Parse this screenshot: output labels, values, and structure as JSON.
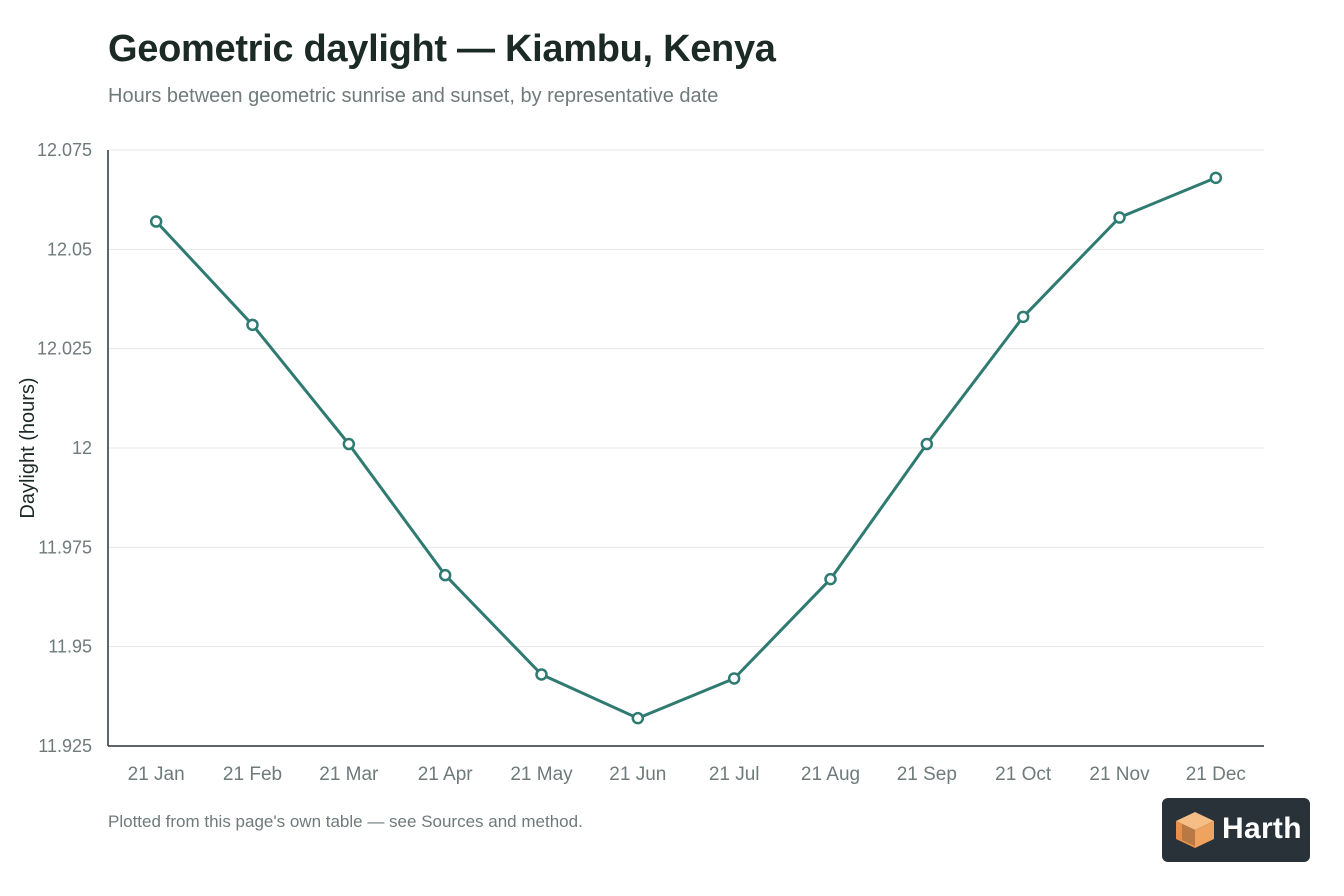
{
  "header": {
    "title": "Geometric daylight — Kiambu, Kenya",
    "subtitle": "Hours between geometric sunrise and sunset, by representative date"
  },
  "footer": {
    "note": "Plotted from this page's own table — see Sources and method."
  },
  "brand": {
    "name": "Harth",
    "logo_icon": "orange-box-logo-icon",
    "logo_color": "#f0a35e",
    "background": "#283238"
  },
  "chart_data": {
    "type": "line",
    "title": "Geometric daylight — Kiambu, Kenya",
    "subtitle": "Hours between geometric sunrise and sunset, by representative date",
    "xlabel": "",
    "ylabel": "Daylight (hours)",
    "categories": [
      "21 Jan",
      "21 Feb",
      "21 Mar",
      "21 Apr",
      "21 May",
      "21 Jun",
      "21 Jul",
      "21 Aug",
      "21 Sep",
      "21 Oct",
      "21 Nov",
      "21 Dec"
    ],
    "series": [
      {
        "values": [
          12.057,
          12.031,
          12.001,
          11.968,
          11.943,
          11.932,
          11.942,
          11.967,
          12.001,
          12.033,
          12.058,
          12.068
        ]
      }
    ],
    "ylim": [
      11.925,
      12.075
    ],
    "yticks": [
      11.925,
      11.95,
      11.975,
      12,
      12.025,
      12.05,
      12.075
    ],
    "ytick_labels": [
      "11.925",
      "11.95",
      "11.975",
      "12",
      "12.025",
      "12.05",
      "12.075"
    ],
    "grid": "horizontal",
    "legend": "none",
    "line_color": "#2f7a71",
    "marker": "open-circle"
  }
}
